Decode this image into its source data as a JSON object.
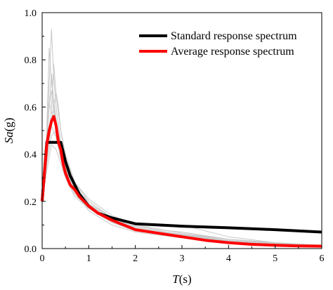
{
  "chart_data": {
    "type": "line",
    "title": "",
    "xlabel": {
      "italic": "T",
      "rest": "(s)"
    },
    "ylabel": {
      "italic": "Sa",
      "rest": "(g)"
    },
    "xlim": [
      0,
      6
    ],
    "ylim": [
      0,
      1.0
    ],
    "xticks": [
      "0",
      "1",
      "2",
      "3",
      "4",
      "5",
      "6"
    ],
    "yticks": [
      "0.0",
      "0.2",
      "0.4",
      "0.6",
      "0.8",
      "1.0"
    ],
    "legend_position": "top-right",
    "grid": false,
    "series": [
      {
        "name": "Standard response spectrum",
        "color": "#000000",
        "x": [
          0,
          0.1,
          0.2,
          0.4,
          0.5,
          0.6,
          0.8,
          1.0,
          1.2,
          1.5,
          2.0,
          2.5,
          3.0,
          4.0,
          5.0,
          6.0
        ],
        "y": [
          0.2,
          0.45,
          0.45,
          0.45,
          0.37,
          0.31,
          0.23,
          0.18,
          0.15,
          0.13,
          0.105,
          0.1,
          0.095,
          0.088,
          0.08,
          0.07
        ]
      },
      {
        "name": "Average response spectrum",
        "color": "#ff0000",
        "x": [
          0,
          0.05,
          0.1,
          0.15,
          0.2,
          0.25,
          0.3,
          0.35,
          0.4,
          0.45,
          0.5,
          0.6,
          0.7,
          0.8,
          1.0,
          1.2,
          1.5,
          2.0,
          2.5,
          3.0,
          3.5,
          4.0,
          4.5,
          5.0,
          5.5,
          6.0
        ],
        "y": [
          0.2,
          0.32,
          0.44,
          0.5,
          0.54,
          0.56,
          0.52,
          0.45,
          0.42,
          0.36,
          0.32,
          0.27,
          0.25,
          0.22,
          0.18,
          0.15,
          0.12,
          0.08,
          0.065,
          0.05,
          0.035,
          0.025,
          0.018,
          0.014,
          0.011,
          0.01
        ]
      }
    ],
    "background_series_color": "#c8c8c8",
    "background_series": [
      {
        "x": [
          0,
          0.1,
          0.15,
          0.2,
          0.25,
          0.3,
          0.4,
          0.5,
          0.7,
          1.0,
          1.5,
          2.0,
          3.0,
          4.0,
          5.0,
          6.0
        ],
        "y": [
          0.2,
          0.5,
          0.7,
          0.93,
          0.72,
          0.6,
          0.45,
          0.35,
          0.25,
          0.17,
          0.11,
          0.08,
          0.05,
          0.03,
          0.02,
          0.015
        ]
      },
      {
        "x": [
          0,
          0.1,
          0.2,
          0.25,
          0.3,
          0.4,
          0.5,
          0.7,
          1.0,
          1.5,
          2.0,
          3.0,
          4.0,
          5.0,
          6.0
        ],
        "y": [
          0.2,
          0.4,
          0.6,
          0.78,
          0.65,
          0.5,
          0.38,
          0.27,
          0.19,
          0.12,
          0.085,
          0.055,
          0.03,
          0.018,
          0.012
        ]
      },
      {
        "x": [
          0,
          0.1,
          0.15,
          0.2,
          0.3,
          0.4,
          0.5,
          0.7,
          1.0,
          1.5,
          2.0,
          3.0,
          4.0,
          5.0,
          6.0
        ],
        "y": [
          0.2,
          0.45,
          0.62,
          0.58,
          0.52,
          0.45,
          0.36,
          0.26,
          0.2,
          0.13,
          0.09,
          0.06,
          0.035,
          0.02,
          0.01
        ]
      },
      {
        "x": [
          0,
          0.1,
          0.2,
          0.3,
          0.35,
          0.4,
          0.5,
          0.7,
          1.0,
          1.5,
          2.0,
          3.0,
          4.0,
          5.0,
          6.0
        ],
        "y": [
          0.2,
          0.42,
          0.55,
          0.66,
          0.6,
          0.5,
          0.4,
          0.28,
          0.21,
          0.14,
          0.1,
          0.1,
          0.05,
          0.025,
          0.012
        ]
      },
      {
        "x": [
          0,
          0.1,
          0.2,
          0.3,
          0.4,
          0.5,
          0.7,
          1.0,
          1.5,
          2.0,
          2.5,
          3.0,
          4.0,
          5.0,
          6.0
        ],
        "y": [
          0.2,
          0.36,
          0.48,
          0.5,
          0.42,
          0.34,
          0.25,
          0.18,
          0.12,
          0.095,
          0.08,
          0.07,
          0.04,
          0.02,
          0.01
        ]
      },
      {
        "x": [
          0,
          0.1,
          0.15,
          0.2,
          0.3,
          0.4,
          0.5,
          0.7,
          1.0,
          1.5,
          2.0,
          3.0,
          4.0,
          5.0,
          6.0
        ],
        "y": [
          0.2,
          0.5,
          0.85,
          0.7,
          0.55,
          0.43,
          0.33,
          0.24,
          0.16,
          0.1,
          0.07,
          0.045,
          0.025,
          0.015,
          0.008
        ]
      },
      {
        "x": [
          0,
          0.1,
          0.2,
          0.3,
          0.4,
          0.5,
          0.7,
          1.0,
          1.5,
          2.0,
          3.0,
          3.5,
          4.0,
          5.0,
          6.0
        ],
        "y": [
          0.2,
          0.38,
          0.52,
          0.47,
          0.38,
          0.32,
          0.28,
          0.2,
          0.13,
          0.09,
          0.06,
          0.05,
          0.04,
          0.025,
          0.015
        ]
      },
      {
        "x": [
          0,
          0.1,
          0.2,
          0.3,
          0.4,
          0.5,
          0.7,
          1.0,
          1.5,
          2.0,
          3.0,
          4.0,
          5.0,
          6.0
        ],
        "y": [
          0.2,
          0.33,
          0.44,
          0.42,
          0.36,
          0.3,
          0.22,
          0.17,
          0.11,
          0.075,
          0.05,
          0.03,
          0.018,
          0.01
        ]
      },
      {
        "x": [
          0,
          0.1,
          0.2,
          0.25,
          0.3,
          0.4,
          0.5,
          0.7,
          1.0,
          1.5,
          2.0,
          3.0,
          4.0,
          5.0,
          6.0
        ],
        "y": [
          0.2,
          0.48,
          0.74,
          0.62,
          0.5,
          0.4,
          0.31,
          0.23,
          0.17,
          0.12,
          0.09,
          0.058,
          0.032,
          0.02,
          0.012
        ]
      },
      {
        "x": [
          0,
          0.1,
          0.15,
          0.2,
          0.3,
          0.4,
          0.5,
          0.7,
          1.0,
          1.5,
          2.0,
          3.0,
          4.0,
          5.0,
          6.0
        ],
        "y": [
          0.2,
          0.44,
          0.6,
          0.67,
          0.48,
          0.4,
          0.34,
          0.26,
          0.19,
          0.13,
          0.1,
          0.065,
          0.04,
          0.022,
          0.013
        ]
      }
    ]
  }
}
